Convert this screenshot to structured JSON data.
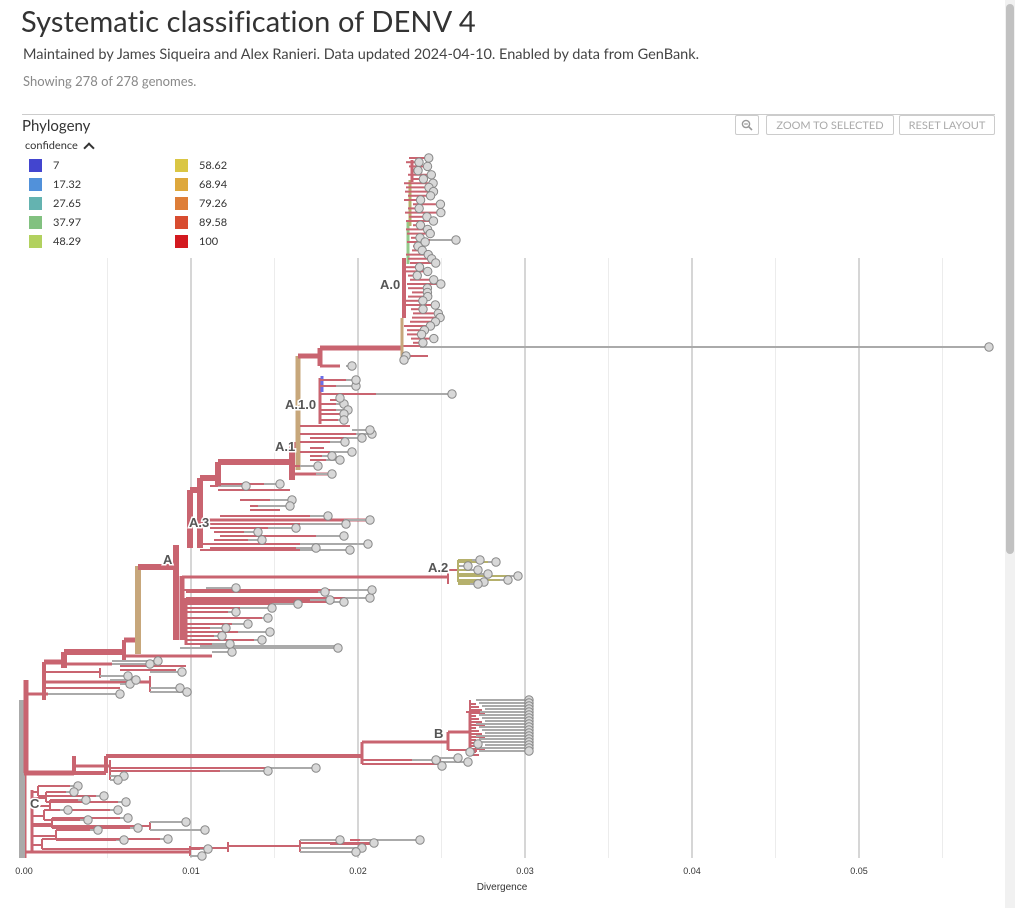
{
  "header": {
    "title": "Systematic classification of DENV 4",
    "byline": "Maintained by James Siqueira and Alex Ranieri. Data updated 2024-04-10. Enabled by data from GenBank.",
    "showing": "Showing 278 of 278 genomes."
  },
  "panel": {
    "title": "Phylogeny",
    "legend_toggle": "confidence",
    "zoom_icon": "zoom-out-icon",
    "zoom_to_selected": "ZOOM TO SELECTED",
    "reset_layout": "RESET LAYOUT"
  },
  "legend": [
    {
      "label": "7",
      "color": "#4a4de6"
    },
    {
      "label": "17.32",
      "color": "#5aa1f2"
    },
    {
      "label": "27.65",
      "color": "#6fc7c4"
    },
    {
      "label": "37.97",
      "color": "#90d68e"
    },
    {
      "label": "48.29",
      "color": "#c6e86a"
    },
    {
      "label": "58.62",
      "color": "#f2dc4c"
    },
    {
      "label": "68.94",
      "color": "#f7bb43"
    },
    {
      "label": "79.26",
      "color": "#f78c3e"
    },
    {
      "label": "89.58",
      "color": "#f05535"
    },
    {
      "label": "100",
      "color": "#ea1c22"
    }
  ],
  "colors": {
    "branch_main": "#c96470",
    "branch_gray": "#aaaaaa",
    "branch_tan": "#c7a77b",
    "branch_olive": "#b5b06c",
    "tip_fill": "#d8d8d8",
    "tip_stroke": "#888888",
    "grid": "#dddddd"
  },
  "chart_data": {
    "type": "phylogeny",
    "xlabel": "Divergence",
    "x_ticks": [
      "0.00",
      "0.01",
      "0.02",
      "0.03",
      "0.04",
      "0.05"
    ],
    "x_tick_values": [
      0.0,
      0.01,
      0.02,
      0.03,
      0.04,
      0.05
    ],
    "xlim": [
      0.0,
      0.058
    ],
    "tip_count": 278,
    "clade_labels": [
      {
        "label": "A.0",
        "divergence": 0.0225
      },
      {
        "label": "A.1.0",
        "divergence": 0.0178
      },
      {
        "label": "A.1",
        "divergence": 0.0163
      },
      {
        "label": "A.3",
        "divergence": 0.01
      },
      {
        "label": "A.2",
        "divergence": 0.0261
      },
      {
        "label": "A",
        "divergence": 0.0068
      },
      {
        "label": "B",
        "divergence": 0.0255
      },
      {
        "label": "C",
        "divergence": 0.0005
      }
    ]
  }
}
